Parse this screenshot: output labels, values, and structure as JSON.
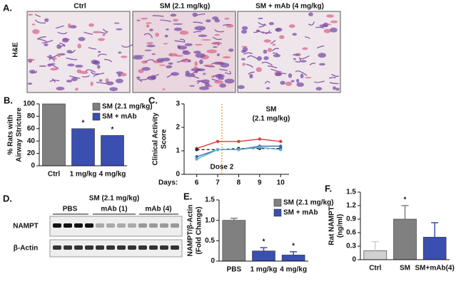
{
  "panel_a": {
    "label": "A.",
    "columns": [
      "Ctrl",
      "SM (2.1 mg/kg)",
      "SM + mAb (4 mg/kg)"
    ],
    "stain": "H&E"
  },
  "panel_d": {
    "label": "D.",
    "title": "SM (2.1 mg/kg)",
    "groups": [
      "PBS",
      "mAb (1)",
      "mAb (4)"
    ],
    "rows": [
      "NAMPT",
      "β-Actin"
    ]
  },
  "chart_data": [
    {
      "type": "bar",
      "label": "B.",
      "ylabel": [
        "% Rats with",
        "Airway Stricture"
      ],
      "categories": [
        "Ctrl",
        "1 mg/kg",
        "4 mg/kg"
      ],
      "values": [
        100,
        60,
        49
      ],
      "colors": [
        "#808080",
        "#3a4fb0",
        "#3a4fb0"
      ],
      "ylim": [
        0,
        100
      ],
      "yticks": [
        0,
        20,
        40,
        60,
        80,
        100
      ],
      "legend": [
        {
          "name": "SM (2.1 mg/kg)",
          "color": "#808080"
        },
        {
          "name": "SM + mAb",
          "color": "#3a4fb0"
        }
      ],
      "annotations": [
        {
          "text": "*",
          "category": "1 mg/kg"
        },
        {
          "text": "*",
          "category": "4 mg/kg"
        }
      ]
    },
    {
      "type": "line",
      "label": "C.",
      "title": [
        "SM",
        "(2.1 mg/kg)"
      ],
      "ylabel": [
        "Clinical Activity",
        "Score"
      ],
      "xlabel": "Days:",
      "x": [
        6,
        7,
        8,
        9,
        10
      ],
      "xlim": [
        5.4,
        10.4
      ],
      "xticks": [
        6,
        7,
        8,
        9,
        10
      ],
      "ylim": [
        0,
        3
      ],
      "yticks": [
        0,
        1,
        2,
        3
      ],
      "series": [
        {
          "color": "#e03a3a",
          "values": [
            1.1,
            1.4,
            1.4,
            1.5,
            1.4
          ]
        },
        {
          "color": "#222222",
          "dashed": true,
          "values": [
            1.05,
            1.05,
            1.1,
            1.1,
            1.1
          ]
        },
        {
          "color": "#3a66b0",
          "values": [
            0.75,
            1.05,
            1.05,
            1.2,
            1.2
          ]
        },
        {
          "color": "#5bb0d0",
          "values": [
            0.65,
            1.05,
            1.05,
            1.15,
            1.05
          ]
        }
      ],
      "vlines": [
        {
          "x": 7.2,
          "label": "Dose 2",
          "color": "#f0a030"
        }
      ]
    },
    {
      "type": "bar",
      "label": "E.",
      "ylabel": [
        "NAMPT/β-Actin",
        "(Fold Change)"
      ],
      "categories": [
        "PBS",
        "1 mg/kg",
        "4 mg/kg"
      ],
      "values": [
        1.0,
        0.25,
        0.15
      ],
      "errors": [
        0.05,
        0.08,
        0.08
      ],
      "colors": [
        "#808080",
        "#3a4fb0",
        "#3a4fb0"
      ],
      "ylim": [
        0,
        1.5
      ],
      "yticks": [
        0,
        0.5,
        {
          "value": 1,
          "label": "1.0"
        },
        1.5
      ],
      "legend": [
        {
          "name": "SM (2.1 mg/kg)",
          "color": "#808080"
        },
        {
          "name": "SM + mAb",
          "color": "#3a4fb0"
        }
      ],
      "annotations": [
        {
          "text": "*",
          "category": "1 mg/kg"
        },
        {
          "text": "*",
          "category": "4 mg/kg"
        }
      ]
    },
    {
      "type": "bar",
      "label": "F.",
      "ylabel": [
        "Rat NAMPT",
        "(ng/ml)"
      ],
      "categories": [
        "Ctrl",
        "SM",
        "SM+mAb(4)"
      ],
      "values": [
        0.2,
        0.9,
        0.5
      ],
      "errors": [
        0.2,
        0.3,
        0.32
      ],
      "colors": [
        "#d0d0d0",
        "#808080",
        "#3a4fb0"
      ],
      "ylim": [
        0,
        1.5
      ],
      "yticks": [
        0,
        0.3,
        0.6,
        0.9,
        1.2,
        1.5
      ],
      "annotations": [
        {
          "text": "*",
          "category": "SM"
        }
      ]
    }
  ]
}
